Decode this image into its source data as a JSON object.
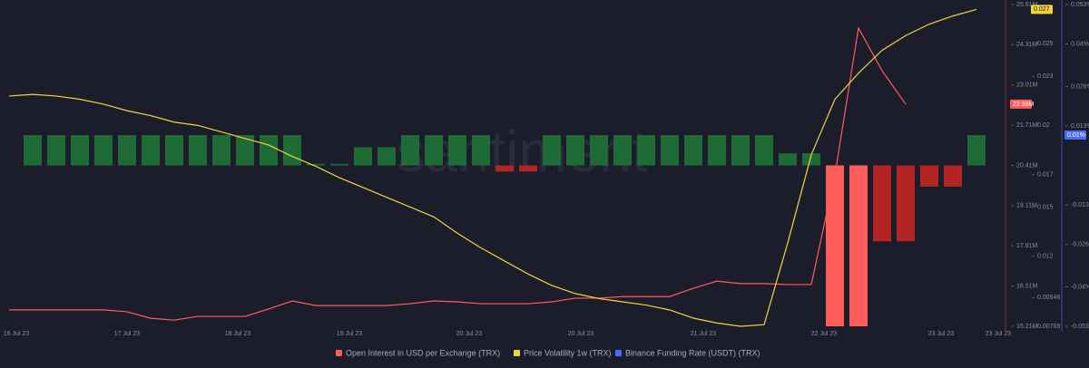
{
  "chart_data": {
    "type": "combo",
    "watermark": "santiment",
    "xticks": [
      "16 Jul 23",
      "17 Jul 23",
      "18 Jul 23",
      "19 Jul 23",
      "20 Jul 23",
      "20 Jul 23",
      "21 Jul 23",
      "22 Jul 23",
      "23 Jul 23",
      "23 Jul 23"
    ],
    "ylim": [
      15.21,
      25.61
    ],
    "yticks": [
      {
        "value": 15.21,
        "label": "15.21M"
      },
      {
        "value": 16.51,
        "label": "16.51M"
      },
      {
        "value": 17.81,
        "label": "17.81M"
      },
      {
        "value": 19.11,
        "label": "19.11M"
      },
      {
        "value": 20.41,
        "label": "20.41M"
      },
      {
        "value": 21.71,
        "label": "21.71M"
      },
      {
        "value": 23.01,
        "label": "23.01M"
      },
      {
        "value": 24.31,
        "label": "24.31M"
      },
      {
        "value": 25.61,
        "label": "25.61M"
      }
    ],
    "y2lim": [
      0.0077,
      0.0274
    ],
    "y2ticks": [
      {
        "value": 0.00769,
        "label": "0.00769"
      },
      {
        "value": 0.00946,
        "label": "0.00946"
      },
      0.012,
      0.015,
      0.017,
      0.02,
      0.023,
      0.025
    ],
    "y3lim": [
      -0.053,
      0.053
    ],
    "y3ticks": [
      {
        "value": -0.053,
        "label": "-0.053%"
      },
      {
        "value": -0.04,
        "label": "-0.04%"
      },
      {
        "value": -0.026,
        "label": "-0.026%"
      },
      {
        "value": -0.013,
        "label": "-0.013%"
      },
      {
        "value": 0.013,
        "label": "0.013%"
      },
      {
        "value": 0.026,
        "label": "0.026%"
      },
      {
        "value": 0.04,
        "label": "0.04%"
      },
      {
        "value": 0.053,
        "label": "0.053%"
      }
    ],
    "series": [
      {
        "name": "Binance Funding Rate (USDT) (TRX)",
        "type": "bar",
        "axis": "y3",
        "color": "#4a6cf7",
        "bar_colors": [
          null,
          "#1f6b35",
          "#1f6b35",
          "#1f6b35",
          "#1f6b35",
          "#1f6b35",
          "#1f6b35",
          "#1f6b35",
          "#1f6b35",
          "#1f6b35",
          "#1f6b35",
          "#1f6b35",
          "#1f6b35",
          "#1f6b35",
          "#1f6b35",
          "#1f6b35",
          "#1f6b35",
          "#1f6b35",
          "#1f6b35",
          "#1f6b35",
          "#1f6b35",
          "#b32424",
          "#b32424",
          "#1f6b35",
          "#1f6b35",
          "#1f6b35",
          "#1f6b35",
          "#1f6b35",
          "#1f6b35",
          "#1f6b35",
          "#1f6b35",
          "#1f6b35",
          "#1f6b35",
          "#1f6b35",
          "#1f6b35",
          "#ff5c5c",
          "#ff5c5c",
          "#b32424",
          "#b32424",
          "#b32424",
          "#b32424",
          "#1f6b35"
        ],
        "values": [
          null,
          0.01,
          0.01,
          0.01,
          0.01,
          0.01,
          0.01,
          0.01,
          0.01,
          0.01,
          0.01,
          0.01,
          0.01,
          0.0005,
          0.0005,
          0.006,
          0.006,
          0.01,
          0.01,
          0.01,
          0.01,
          -0.002,
          -0.002,
          0.01,
          0.01,
          0.01,
          0.01,
          0.01,
          0.01,
          0.01,
          0.01,
          0.01,
          0.01,
          0.004,
          0.004,
          -0.053,
          -0.053,
          -0.025,
          -0.025,
          -0.007,
          -0.007,
          0.01
        ],
        "value_labels": [
          null,
          null,
          null,
          null,
          null,
          null,
          null,
          null,
          null,
          null,
          null,
          null,
          null,
          null,
          null,
          null,
          null,
          null,
          null,
          null,
          null,
          null,
          null,
          null,
          null,
          null,
          null,
          null,
          null,
          null,
          null,
          null,
          null,
          null,
          null,
          null,
          null,
          null,
          null,
          null,
          null,
          "0.01%"
        ]
      },
      {
        "name": "Open Interest in USD per Exchange (TRX)",
        "type": "line",
        "axis": "y",
        "color": "#ff5c5c",
        "values": [
          15.74,
          15.74,
          15.74,
          15.74,
          15.74,
          15.68,
          15.47,
          15.41,
          15.53,
          15.53,
          15.53,
          15.77,
          16.03,
          15.88,
          15.88,
          15.88,
          15.88,
          15.94,
          16.03,
          16.0,
          15.94,
          15.94,
          15.94,
          16.0,
          16.12,
          16.12,
          16.17,
          16.17,
          16.17,
          16.44,
          16.67,
          16.59,
          16.59,
          16.56,
          16.56,
          20.1,
          24.85,
          23.47,
          22.39,
          null,
          null,
          null
        ],
        "value_labels": [
          null,
          null,
          null,
          null,
          null,
          null,
          null,
          null,
          null,
          null,
          null,
          null,
          null,
          null,
          null,
          null,
          null,
          null,
          null,
          null,
          null,
          null,
          null,
          null,
          null,
          null,
          null,
          null,
          null,
          null,
          null,
          null,
          null,
          null,
          null,
          null,
          null,
          null,
          "22.39M",
          null,
          null,
          null
        ]
      },
      {
        "name": "Price Volatility 1w (TRX)",
        "type": "line",
        "axis": "y2",
        "color": "#f2d240",
        "values": [
          0.0218,
          0.0219,
          0.0218,
          0.0216,
          0.0213,
          0.0209,
          0.0206,
          0.0202,
          0.02,
          0.0196,
          0.0192,
          0.0188,
          0.0181,
          0.0175,
          0.0168,
          0.0162,
          0.0156,
          0.015,
          0.0144,
          0.0134,
          0.0125,
          0.0117,
          0.0109,
          0.0102,
          0.0097,
          0.0094,
          0.0092,
          0.009,
          0.0087,
          0.0082,
          0.0079,
          0.0077,
          0.0078,
          0.0128,
          0.0182,
          0.0216,
          0.0232,
          0.0246,
          0.0255,
          0.0262,
          0.0267,
          0.0271
        ],
        "value_labels": [
          null,
          null,
          null,
          null,
          null,
          null,
          null,
          null,
          null,
          null,
          null,
          null,
          null,
          null,
          null,
          null,
          null,
          null,
          null,
          null,
          null,
          null,
          null,
          null,
          null,
          null,
          null,
          null,
          null,
          null,
          null,
          null,
          null,
          null,
          null,
          null,
          null,
          null,
          null,
          null,
          null,
          "0.027"
        ]
      }
    ]
  }
}
